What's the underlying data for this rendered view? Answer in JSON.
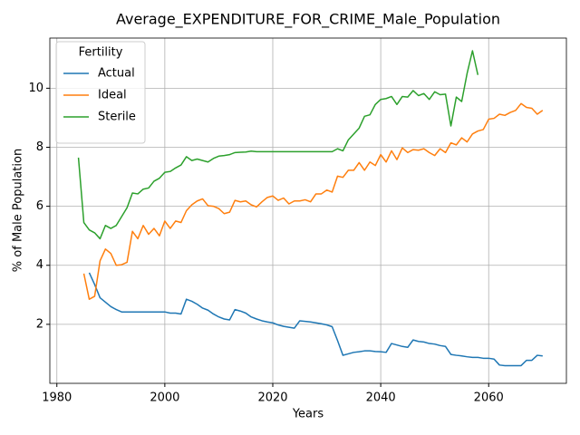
{
  "chart_data": {
    "type": "line",
    "title": "Average_EXPENDITURE_FOR_CRIME_Male_Population",
    "xlabel": "Years",
    "ylabel": "% of Male Population",
    "legend_title": "Fertility",
    "legend_loc": "upper left",
    "grid": true,
    "xlim": [
      1978.7,
      2074.4
    ],
    "xticks": [
      1980,
      2000,
      2020,
      2040,
      2060
    ],
    "ylim": [
      0.0,
      11.7
    ],
    "yticks": [
      2,
      4,
      6,
      8,
      10
    ],
    "x": [
      1984,
      1985,
      1986,
      1987,
      1988,
      1989,
      1990,
      1991,
      1992,
      1993,
      1994,
      1995,
      1996,
      1997,
      1998,
      1999,
      2000,
      2001,
      2002,
      2003,
      2004,
      2005,
      2006,
      2007,
      2008,
      2009,
      2010,
      2011,
      2012,
      2013,
      2014,
      2015,
      2016,
      2017,
      2018,
      2019,
      2020,
      2021,
      2022,
      2023,
      2024,
      2025,
      2026,
      2027,
      2028,
      2029,
      2030,
      2031,
      2032,
      2033,
      2034,
      2035,
      2036,
      2037,
      2038,
      2039,
      2040,
      2041,
      2042,
      2043,
      2044,
      2045,
      2046,
      2047,
      2048,
      2049,
      2050,
      2051,
      2052,
      2053,
      2054,
      2055,
      2056,
      2057,
      2058,
      2059,
      2060,
      2061,
      2062,
      2063,
      2064,
      2065,
      2066,
      2067,
      2068,
      2069,
      2070
    ],
    "series": [
      {
        "name": "Actual",
        "color": "#1f77b4",
        "values": [
          null,
          null,
          3.75,
          3.35,
          2.9,
          2.75,
          2.6,
          2.5,
          2.42,
          2.42,
          2.42,
          2.42,
          2.42,
          2.42,
          2.42,
          2.42,
          2.42,
          2.38,
          2.38,
          2.35,
          2.85,
          2.78,
          2.68,
          2.55,
          2.48,
          2.35,
          2.25,
          2.18,
          2.15,
          2.5,
          2.45,
          2.38,
          2.25,
          2.18,
          2.12,
          2.08,
          2.05,
          1.98,
          1.93,
          1.9,
          1.87,
          2.12,
          2.1,
          2.08,
          2.05,
          2.02,
          1.98,
          1.92,
          1.45,
          0.95,
          1.0,
          1.05,
          1.07,
          1.1,
          1.1,
          1.08,
          1.07,
          1.05,
          1.35,
          1.3,
          1.25,
          1.22,
          1.47,
          1.42,
          1.4,
          1.35,
          1.33,
          1.28,
          1.25,
          0.98,
          0.95,
          0.93,
          0.9,
          0.88,
          0.88,
          0.85,
          0.85,
          0.82,
          0.62,
          0.6,
          0.6,
          0.6,
          0.6,
          0.78,
          0.78,
          0.95,
          0.93
        ]
      },
      {
        "name": "Ideal",
        "color": "#ff7f0e",
        "values": [
          null,
          3.72,
          2.85,
          2.95,
          4.15,
          4.55,
          4.4,
          4.0,
          4.02,
          4.1,
          5.15,
          4.9,
          5.35,
          5.05,
          5.25,
          5.0,
          5.5,
          5.25,
          5.5,
          5.45,
          5.85,
          6.05,
          6.18,
          6.25,
          6.02,
          6.0,
          5.92,
          5.75,
          5.8,
          6.2,
          6.15,
          6.18,
          6.05,
          5.98,
          6.15,
          6.3,
          6.35,
          6.2,
          6.28,
          6.08,
          6.18,
          6.18,
          6.22,
          6.15,
          6.42,
          6.42,
          6.55,
          6.48,
          7.02,
          6.98,
          7.22,
          7.22,
          7.48,
          7.22,
          7.5,
          7.38,
          7.75,
          7.5,
          7.88,
          7.58,
          7.98,
          7.82,
          7.92,
          7.9,
          7.95,
          7.82,
          7.72,
          7.95,
          7.82,
          8.15,
          8.08,
          8.32,
          8.18,
          8.45,
          8.55,
          8.6,
          8.95,
          8.98,
          9.12,
          9.08,
          9.18,
          9.25,
          9.48,
          9.35,
          9.32,
          9.12,
          9.25
        ]
      },
      {
        "name": "Sterile",
        "color": "#2ca02c",
        "values": [
          7.65,
          5.45,
          5.2,
          5.1,
          4.9,
          5.35,
          5.25,
          5.35,
          5.65,
          5.95,
          6.45,
          6.42,
          6.58,
          6.62,
          6.85,
          6.95,
          7.15,
          7.18,
          7.3,
          7.4,
          7.68,
          7.55,
          7.6,
          7.55,
          7.5,
          7.62,
          7.7,
          7.72,
          7.75,
          7.82,
          7.83,
          7.84,
          7.87,
          7.85,
          7.85,
          7.85,
          7.85,
          7.85,
          7.85,
          7.85,
          7.85,
          7.85,
          7.85,
          7.85,
          7.85,
          7.85,
          7.85,
          7.85,
          7.95,
          7.88,
          8.25,
          8.45,
          8.65,
          9.05,
          9.1,
          9.45,
          9.62,
          9.65,
          9.72,
          9.45,
          9.72,
          9.7,
          9.92,
          9.75,
          9.82,
          9.62,
          9.88,
          9.78,
          9.8,
          8.72,
          9.7,
          9.55,
          10.5,
          11.27,
          10.45,
          null,
          null,
          null,
          null,
          null,
          null,
          null,
          null,
          null,
          null,
          null,
          null
        ]
      }
    ]
  }
}
